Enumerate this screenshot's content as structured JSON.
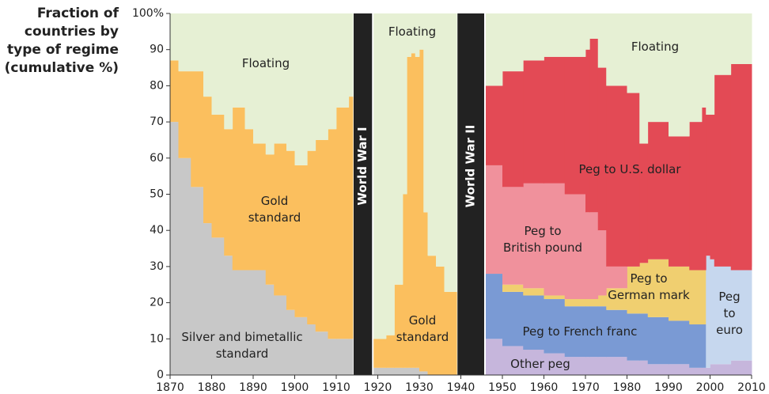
{
  "chart_data": {
    "type": "area",
    "stacked": true,
    "step": true,
    "title": "Fraction of countries by type of regime (cumulative %)",
    "x": [
      1870,
      1872,
      1875,
      1878,
      1880,
      1883,
      1885,
      1888,
      1890,
      1893,
      1895,
      1898,
      1900,
      1903,
      1905,
      1908,
      1910,
      1913,
      1914,
      1919,
      1922,
      1924,
      1926,
      1927,
      1928,
      1929,
      1930,
      1931,
      1932,
      1934,
      1936,
      1938,
      1939,
      1946,
      1950,
      1955,
      1960,
      1965,
      1970,
      1971,
      1973,
      1975,
      1980,
      1983,
      1985,
      1990,
      1995,
      1998,
      1999,
      2000,
      2001,
      2005,
      2010
    ],
    "series": [
      {
        "name": "Other peg",
        "color": "#c6b6dc",
        "values": [
          0,
          0,
          0,
          0,
          0,
          0,
          0,
          0,
          0,
          0,
          0,
          0,
          0,
          0,
          0,
          0,
          0,
          0,
          null,
          0,
          0,
          0,
          0,
          0,
          0,
          0,
          0,
          0,
          0,
          0,
          0,
          0,
          null,
          10,
          8,
          7,
          6,
          5,
          5,
          5,
          5,
          5,
          4,
          4,
          3,
          3,
          2,
          2,
          2,
          3,
          3,
          4,
          4
        ]
      },
      {
        "name": "Silver and bimetallic standard",
        "color": "#c8c8c8",
        "values": [
          70,
          60,
          52,
          42,
          38,
          33,
          29,
          29,
          29,
          25,
          22,
          18,
          16,
          14,
          12,
          10,
          10,
          10,
          null,
          2,
          2,
          2,
          2,
          2,
          2,
          2,
          1,
          1,
          0,
          0,
          0,
          0,
          null,
          0,
          0,
          0,
          0,
          0,
          0,
          0,
          0,
          0,
          0,
          0,
          0,
          0,
          0,
          0,
          0,
          0,
          0,
          0,
          0
        ]
      },
      {
        "name": "Gold standard",
        "color": "#fbbf5e",
        "values": [
          17,
          24,
          32,
          35,
          34,
          35,
          45,
          39,
          35,
          36,
          42,
          44,
          42,
          48,
          53,
          58,
          64,
          67,
          null,
          8,
          9,
          23,
          48,
          86,
          87,
          86,
          89,
          44,
          33,
          30,
          23,
          23,
          null,
          0,
          0,
          0,
          0,
          0,
          0,
          0,
          0,
          0,
          0,
          0,
          0,
          0,
          0,
          0,
          0,
          0,
          0,
          0,
          0
        ]
      },
      {
        "name": "Peg to French franc",
        "color": "#7a9ad4",
        "values": [
          0,
          0,
          0,
          0,
          0,
          0,
          0,
          0,
          0,
          0,
          0,
          0,
          0,
          0,
          0,
          0,
          0,
          0,
          null,
          0,
          0,
          0,
          0,
          0,
          0,
          0,
          0,
          0,
          0,
          0,
          0,
          0,
          null,
          18,
          15,
          15,
          15,
          14,
          14,
          14,
          14,
          13,
          13,
          13,
          13,
          12,
          12,
          12,
          0,
          0,
          0,
          0,
          0
        ]
      },
      {
        "name": "Peg to German mark",
        "color": "#f0cf70",
        "values": [
          0,
          0,
          0,
          0,
          0,
          0,
          0,
          0,
          0,
          0,
          0,
          0,
          0,
          0,
          0,
          0,
          0,
          0,
          null,
          0,
          0,
          0,
          0,
          0,
          0,
          0,
          0,
          0,
          0,
          0,
          0,
          0,
          null,
          0,
          2,
          2,
          1,
          2,
          2,
          2,
          3,
          6,
          13,
          14,
          16,
          15,
          15,
          15,
          0,
          0,
          0,
          0,
          0
        ]
      },
      {
        "name": "Peg to euro",
        "color": "#c6d7ee",
        "values": [
          0,
          0,
          0,
          0,
          0,
          0,
          0,
          0,
          0,
          0,
          0,
          0,
          0,
          0,
          0,
          0,
          0,
          0,
          null,
          0,
          0,
          0,
          0,
          0,
          0,
          0,
          0,
          0,
          0,
          0,
          0,
          0,
          null,
          0,
          0,
          0,
          0,
          0,
          0,
          0,
          0,
          0,
          0,
          0,
          0,
          0,
          0,
          0,
          31,
          29,
          27,
          25,
          26
        ]
      },
      {
        "name": "Peg to British pound",
        "color": "#f0919c",
        "values": [
          0,
          0,
          0,
          0,
          0,
          0,
          0,
          0,
          0,
          0,
          0,
          0,
          0,
          0,
          0,
          0,
          0,
          0,
          null,
          0,
          0,
          0,
          0,
          0,
          0,
          0,
          0,
          0,
          0,
          0,
          0,
          0,
          null,
          30,
          27,
          29,
          31,
          29,
          24,
          24,
          18,
          6,
          0,
          0,
          0,
          0,
          0,
          0,
          0,
          0,
          0,
          0,
          0
        ]
      },
      {
        "name": "Peg to U.S. dollar",
        "color": "#e34a55",
        "values": [
          0,
          0,
          0,
          0,
          0,
          0,
          0,
          0,
          0,
          0,
          0,
          0,
          0,
          0,
          0,
          0,
          0,
          0,
          null,
          0,
          0,
          0,
          0,
          0,
          0,
          0,
          0,
          0,
          0,
          0,
          0,
          0,
          null,
          22,
          32,
          34,
          35,
          38,
          45,
          48,
          45,
          50,
          48,
          33,
          38,
          36,
          41,
          45,
          39,
          40,
          53,
          57,
          56
        ]
      },
      {
        "name": "Floating",
        "color": "#e6f0d4",
        "values": [
          13,
          16,
          16,
          23,
          28,
          32,
          26,
          32,
          36,
          39,
          36,
          38,
          42,
          38,
          35,
          32,
          26,
          23,
          null,
          90,
          89,
          75,
          50,
          12,
          11,
          12,
          10,
          55,
          67,
          70,
          77,
          77,
          null,
          20,
          16,
          13,
          12,
          12,
          10,
          7,
          15,
          20,
          22,
          36,
          30,
          34,
          30,
          26,
          28,
          28,
          17,
          14,
          14
        ]
      }
    ],
    "annotations": [
      {
        "text": "World War I",
        "start": 1914,
        "end": 1919
      },
      {
        "text": "World War II",
        "start": 1939,
        "end": 1946
      }
    ],
    "xlim": [
      1870,
      2010
    ],
    "xticks": [
      1870,
      1880,
      1890,
      1900,
      1910,
      1920,
      1930,
      1940,
      1950,
      1960,
      1970,
      1980,
      1990,
      2000,
      2010
    ],
    "ylim": [
      0,
      100
    ],
    "yticks": [
      0,
      10,
      20,
      30,
      40,
      50,
      60,
      70,
      80,
      90,
      {
        "value": 100,
        "label": "100%"
      }
    ]
  }
}
